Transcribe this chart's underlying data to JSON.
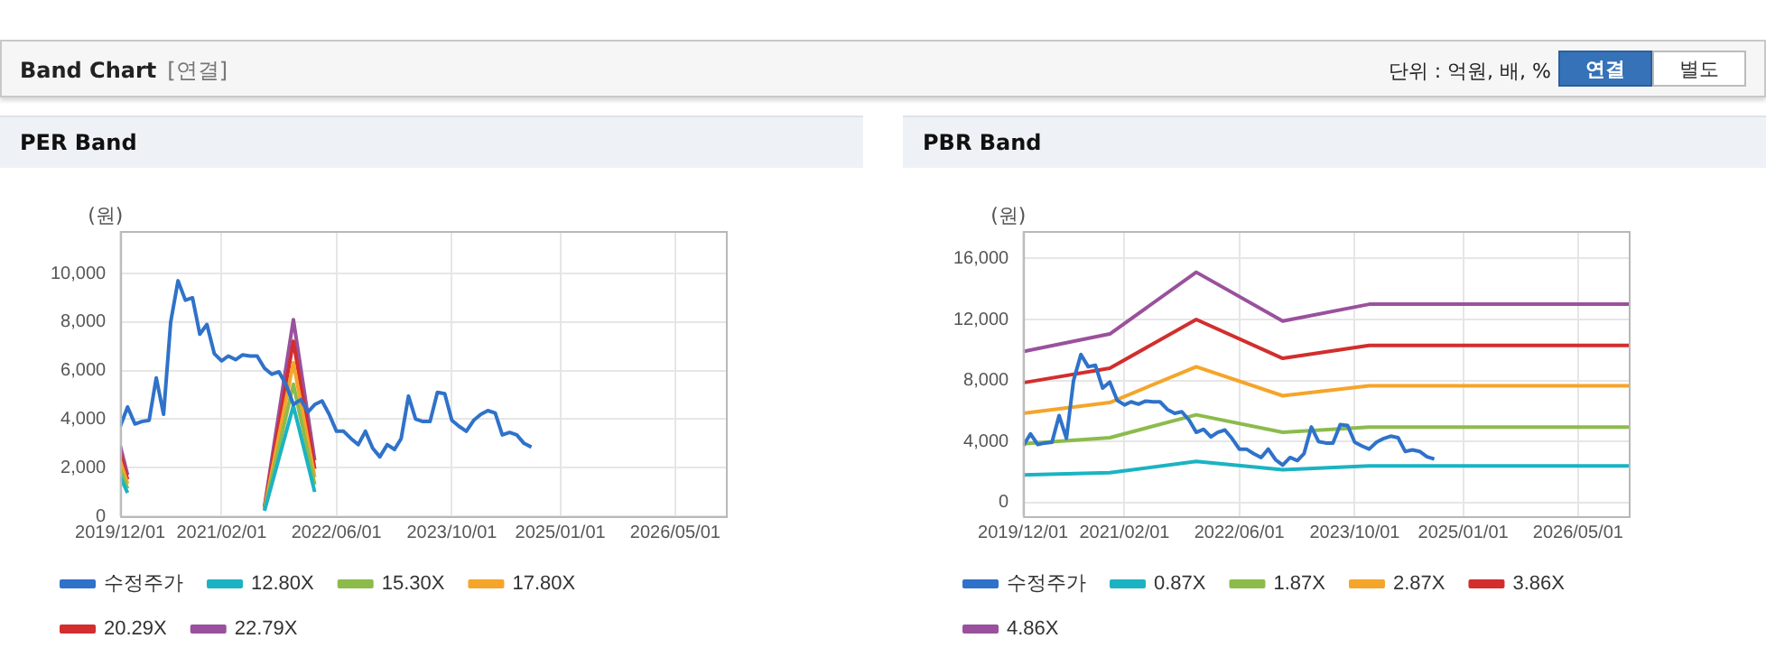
{
  "chart_data": [
    {
      "type": "line",
      "title": "PER Band",
      "ylabel": "(원)",
      "annotations": [
        "Band Chart",
        "[연결]",
        "단위 : 억원, 배, %",
        "연결",
        "별도"
      ],
      "xlim": [
        "2019-12-01",
        "2026-12-01"
      ],
      "xticks": [
        {
          "value": "2019-12-01",
          "label": "2019/12/01"
        },
        {
          "value": "2021-02-01",
          "label": "2021/02/01"
        },
        {
          "value": "2022-06-01",
          "label": "2022/06/01"
        },
        {
          "value": "2023-10-01",
          "label": "2023/10/01"
        },
        {
          "value": "2025-01-01",
          "label": "2025/01/01"
        },
        {
          "value": "2026-05-01",
          "label": "2026/05/01"
        }
      ],
      "ylim": [
        0,
        11750
      ],
      "yticks": [
        0,
        {
          "value": 2000,
          "label": "2,000"
        },
        {
          "value": 4000,
          "label": "4,000"
        },
        {
          "value": 6000,
          "label": "6,000"
        },
        {
          "value": 8000,
          "label": "8,000"
        },
        {
          "value": 10000,
          "label": "10,000"
        }
      ],
      "grid": true,
      "legend": "bottom",
      "marker": "none",
      "series": [
        {
          "name": "수정주가",
          "color": "#2f72c9",
          "x": [
            "2019-12-01",
            "2020-01-01",
            "2020-02-01",
            "2020-03-01",
            "2020-04-01",
            "2020-05-01",
            "2020-06-01",
            "2020-07-01",
            "2020-08-01",
            "2020-09-01",
            "2020-10-01",
            "2020-11-01",
            "2020-12-01",
            "2021-01-01",
            "2021-02-01",
            "2021-03-01",
            "2021-04-01",
            "2021-05-01",
            "2021-06-01",
            "2021-07-01",
            "2021-08-01",
            "2021-09-01",
            "2021-10-01",
            "2021-11-01",
            "2021-12-01",
            "2022-01-01",
            "2022-02-01",
            "2022-03-01",
            "2022-04-01",
            "2022-05-01",
            "2022-06-01",
            "2022-07-01",
            "2022-08-01",
            "2022-09-01",
            "2022-10-01",
            "2022-11-01",
            "2022-12-01",
            "2023-01-01",
            "2023-02-01",
            "2023-03-01",
            "2023-04-01",
            "2023-05-01",
            "2023-06-01",
            "2023-07-01",
            "2023-08-01",
            "2023-09-01",
            "2023-10-01",
            "2023-11-01",
            "2023-12-01",
            "2024-01-01",
            "2024-02-01",
            "2024-03-01",
            "2024-04-01",
            "2024-05-01",
            "2024-06-01",
            "2024-07-01",
            "2024-08-01",
            "2024-09-01"
          ],
          "values": [
            3700,
            4500,
            3800,
            3900,
            3950,
            5700,
            4200,
            8000,
            9700,
            8900,
            9000,
            7500,
            7900,
            6700,
            6400,
            6600,
            6450,
            6650,
            6600,
            6600,
            6100,
            5850,
            5950,
            5400,
            4600,
            4800,
            4300,
            4600,
            4750,
            4200,
            3500,
            3500,
            3200,
            2950,
            3500,
            2800,
            2450,
            2950,
            2750,
            3200,
            4950,
            4000,
            3900,
            3900,
            5100,
            5050,
            3950,
            3700,
            3500,
            3950,
            4200,
            4350,
            4250,
            3350,
            3450,
            3350,
            3000,
            2850
          ]
        },
        {
          "name": "12.80X",
          "color": "#1bb3c2",
          "x": [
            "2019-12-01",
            "2020-01-01",
            "2020-02-01",
            "2021-08-01",
            "2021-12-01",
            "2022-03-01"
          ],
          "values": [
            1630,
            960,
            null,
            220,
            4550,
            1000
          ]
        },
        {
          "name": "15.30X",
          "color": "#8cbb4c",
          "x": [
            "2019-12-01",
            "2020-01-01",
            "2020-02-01",
            "2021-08-01",
            "2021-12-01",
            "2022-03-01"
          ],
          "values": [
            1950,
            1140,
            null,
            260,
            5440,
            1300
          ]
        },
        {
          "name": "17.80X",
          "color": "#f5a52a",
          "x": [
            "2019-12-01",
            "2020-01-01",
            "2020-02-01",
            "2021-08-01",
            "2021-12-01",
            "2022-03-01"
          ],
          "values": [
            2270,
            1330,
            null,
            300,
            6330,
            1600
          ]
        },
        {
          "name": "20.29X",
          "color": "#d22e2e",
          "x": [
            "2019-12-01",
            "2020-01-01",
            "2020-02-01",
            "2021-08-01",
            "2021-12-01",
            "2022-03-01"
          ],
          "values": [
            2580,
            1510,
            null,
            350,
            7210,
            1950
          ]
        },
        {
          "name": "22.79X",
          "color": "#9a519d",
          "x": [
            "2019-12-01",
            "2020-01-01",
            "2020-02-01",
            "2021-08-01",
            "2021-12-01",
            "2022-03-01"
          ],
          "values": [
            2900,
            1700,
            null,
            400,
            8100,
            2300
          ]
        }
      ]
    },
    {
      "type": "line",
      "title": "PBR Band",
      "ylabel": "(원)",
      "xlim": [
        "2019-12-01",
        "2026-12-01"
      ],
      "xticks": [
        {
          "value": "2019-12-01",
          "label": "2019/12/01"
        },
        {
          "value": "2021-02-01",
          "label": "2021/02/01"
        },
        {
          "value": "2022-06-01",
          "label": "2022/06/01"
        },
        {
          "value": "2023-10-01",
          "label": "2023/10/01"
        },
        {
          "value": "2025-01-01",
          "label": "2025/01/01"
        },
        {
          "value": "2026-05-01",
          "label": "2026/05/01"
        }
      ],
      "ylim": [
        -900,
        17800
      ],
      "yticks": [
        0,
        {
          "value": 4000,
          "label": "4,000"
        },
        {
          "value": 8000,
          "label": "8,000"
        },
        {
          "value": 12000,
          "label": "12,000"
        },
        {
          "value": 16000,
          "label": "16,000"
        }
      ],
      "grid": true,
      "legend": "bottom",
      "marker": "none",
      "series": [
        {
          "name": "수정주가",
          "color": "#2f72c9",
          "x": [
            "2019-12-01",
            "2020-01-01",
            "2020-02-01",
            "2020-03-01",
            "2020-04-01",
            "2020-05-01",
            "2020-06-01",
            "2020-07-01",
            "2020-08-01",
            "2020-09-01",
            "2020-10-01",
            "2020-11-01",
            "2020-12-01",
            "2021-01-01",
            "2021-02-01",
            "2021-03-01",
            "2021-04-01",
            "2021-05-01",
            "2021-06-01",
            "2021-07-01",
            "2021-08-01",
            "2021-09-01",
            "2021-10-01",
            "2021-11-01",
            "2021-12-01",
            "2022-01-01",
            "2022-02-01",
            "2022-03-01",
            "2022-04-01",
            "2022-05-01",
            "2022-06-01",
            "2022-07-01",
            "2022-08-01",
            "2022-09-01",
            "2022-10-01",
            "2022-11-01",
            "2022-12-01",
            "2023-01-01",
            "2023-02-01",
            "2023-03-01",
            "2023-04-01",
            "2023-05-01",
            "2023-06-01",
            "2023-07-01",
            "2023-08-01",
            "2023-09-01",
            "2023-10-01",
            "2023-11-01",
            "2023-12-01",
            "2024-01-01",
            "2024-02-01",
            "2024-03-01",
            "2024-04-01",
            "2024-05-01",
            "2024-06-01",
            "2024-07-01",
            "2024-08-01",
            "2024-09-01"
          ],
          "values": [
            3700,
            4500,
            3800,
            3900,
            3950,
            5700,
            4200,
            8000,
            9700,
            8900,
            9000,
            7500,
            7900,
            6700,
            6400,
            6600,
            6450,
            6650,
            6600,
            6600,
            6100,
            5850,
            5950,
            5400,
            4600,
            4800,
            4300,
            4600,
            4750,
            4200,
            3500,
            3500,
            3200,
            2950,
            3500,
            2800,
            2450,
            2950,
            2750,
            3200,
            4950,
            4000,
            3900,
            3900,
            5100,
            5050,
            3950,
            3700,
            3500,
            3950,
            4200,
            4350,
            4250,
            3350,
            3450,
            3350,
            3000,
            2850
          ]
        },
        {
          "name": "0.87X",
          "color": "#1bb3c2",
          "x": [
            "2019-12-01",
            "2020-12-01",
            "2021-12-01",
            "2022-12-01",
            "2023-12-01",
            "2026-12-01"
          ],
          "values": [
            1800,
            1950,
            2700,
            2150,
            2400,
            2400
          ]
        },
        {
          "name": "1.87X",
          "color": "#8cbb4c",
          "x": [
            "2019-12-01",
            "2020-12-01",
            "2021-12-01",
            "2022-12-01",
            "2023-12-01",
            "2026-12-01"
          ],
          "values": [
            3850,
            4250,
            5750,
            4600,
            4950,
            4950
          ]
        },
        {
          "name": "2.87X",
          "color": "#f5a52a",
          "x": [
            "2019-12-01",
            "2020-12-01",
            "2021-12-01",
            "2022-12-01",
            "2023-12-01",
            "2026-12-01"
          ],
          "values": [
            5850,
            6550,
            8900,
            7000,
            7650,
            7650
          ]
        },
        {
          "name": "3.86X",
          "color": "#d22e2e",
          "x": [
            "2019-12-01",
            "2020-12-01",
            "2021-12-01",
            "2022-12-01",
            "2023-12-01",
            "2026-12-01"
          ],
          "values": [
            7850,
            8800,
            12000,
            9450,
            10300,
            10300
          ]
        },
        {
          "name": "4.86X",
          "color": "#9a519d",
          "x": [
            "2019-12-01",
            "2020-12-01",
            "2021-12-01",
            "2022-12-01",
            "2023-12-01",
            "2026-12-01"
          ],
          "values": [
            9900,
            11050,
            15100,
            11900,
            13000,
            13000
          ]
        }
      ]
    }
  ]
}
